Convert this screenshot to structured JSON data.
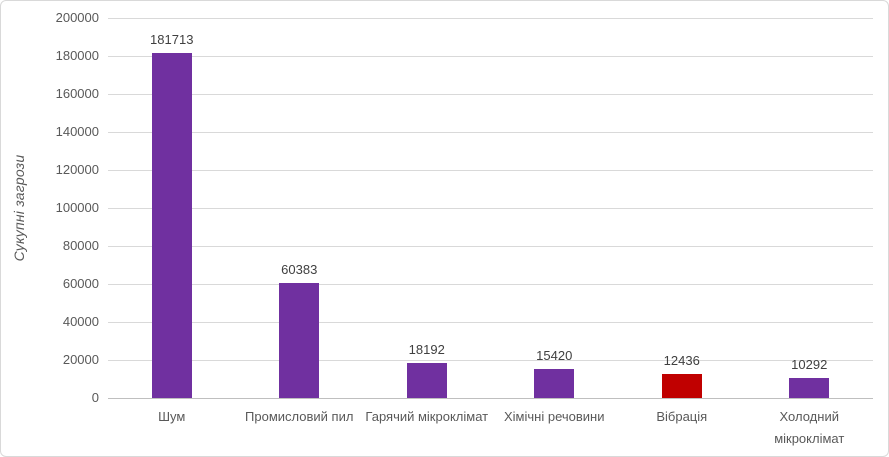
{
  "chart": {
    "background": "#FFFFFF",
    "border_color": "#D9D9D9"
  },
  "chart_data": {
    "type": "bar",
    "title": "",
    "xlabel": "",
    "ylabel": "Сукупні загрози",
    "categories": [
      "Шум",
      "Промисловий пил",
      "Гарячий мікроклімат",
      "Хімічні речовини",
      "Вібрація",
      "Холодний мікроклімат"
    ],
    "values": [
      181713,
      60383,
      18192,
      15420,
      12436,
      10292
    ],
    "data_labels": [
      "181713",
      "60383",
      "18192",
      "15420",
      "12436",
      "10292"
    ],
    "bar_colors": [
      "#7030A0",
      "#7030A0",
      "#7030A0",
      "#7030A0",
      "#C00000",
      "#7030A0"
    ],
    "highlighted_category": "Вібрація",
    "ylim": [
      0,
      200000
    ],
    "ytick_step": 20000,
    "ytick_labels": [
      "0",
      "20000",
      "40000",
      "60000",
      "80000",
      "100000",
      "120000",
      "140000",
      "160000",
      "180000",
      "200000"
    ],
    "grid": true,
    "legend_position": "none",
    "styles": {
      "gridline_color": "#D9D9D9",
      "axis_line_color": "#BFBFBF",
      "tick_label_color": "#595959",
      "category_label_color": "#595959",
      "value_label_color": "#404040",
      "axis_title_color": "#595959"
    }
  }
}
